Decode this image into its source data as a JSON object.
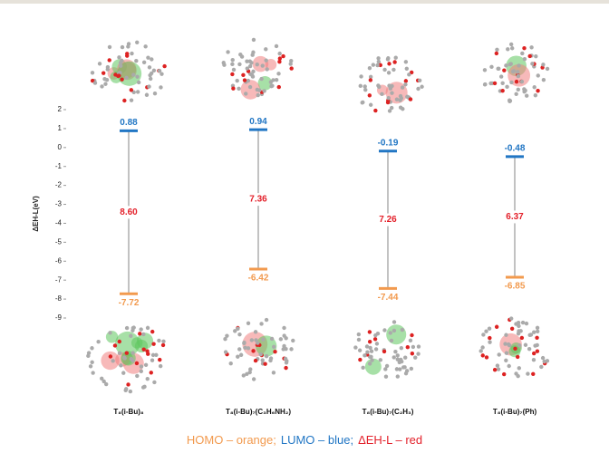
{
  "chart_data": {
    "type": "energy-level",
    "y_label": "ΔEH-L(eV)",
    "categories": [
      "T₈(i-Bu)₈",
      "T₈(i-Bu)₇(C₃H₆NH₂)",
      "T₈(i-Bu)₇(C₂H₃)",
      "T₈(i-Bu)₇(Ph)"
    ],
    "series": [
      {
        "name": "HOMO – orange;",
        "color": "#f29a4e",
        "values": [
          -7.72,
          -6.42,
          -7.44,
          -6.85
        ]
      },
      {
        "name": "LUMO – blue;",
        "color": "#2176c4",
        "values": [
          0.88,
          0.94,
          -0.19,
          -0.48
        ]
      },
      {
        "name": "ΔEH-L – red",
        "color": "#e3202a",
        "values": [
          8.6,
          7.36,
          7.26,
          6.37
        ],
        "value_labels": [
          "8.60",
          "7.36",
          "7.26",
          "6.37"
        ]
      }
    ],
    "ylim": [
      -9,
      2
    ],
    "yticks": [
      2,
      1,
      0,
      -1,
      -2,
      -3,
      -4,
      -5,
      -6,
      -7,
      -8,
      -9
    ]
  }
}
